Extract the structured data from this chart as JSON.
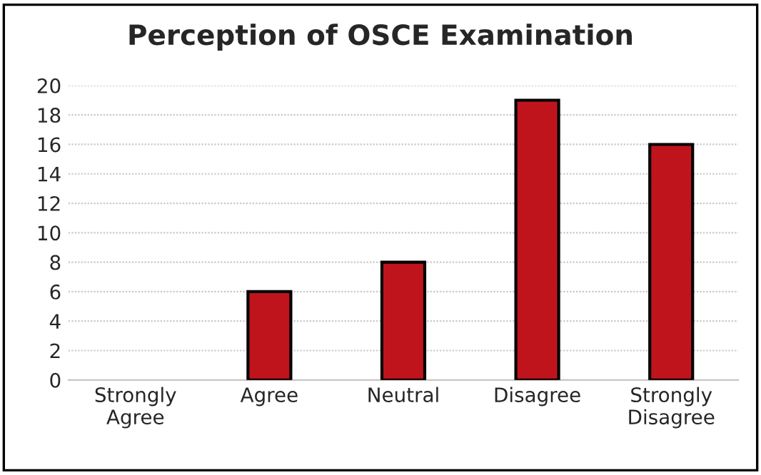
{
  "chart_data": {
    "type": "bar",
    "title": "Perception of OSCE Examination",
    "categories": [
      "Strongly\nAgree",
      "Agree",
      "Neutral",
      "Disagree",
      "Strongly\nDisagree"
    ],
    "values": [
      0,
      6,
      8,
      19,
      16
    ],
    "color": "#c0141c",
    "ylim": [
      0,
      20
    ],
    "yticks": [
      0,
      2,
      4,
      6,
      8,
      10,
      12,
      14,
      16,
      18,
      20
    ],
    "grid": "y",
    "legend": false
  }
}
